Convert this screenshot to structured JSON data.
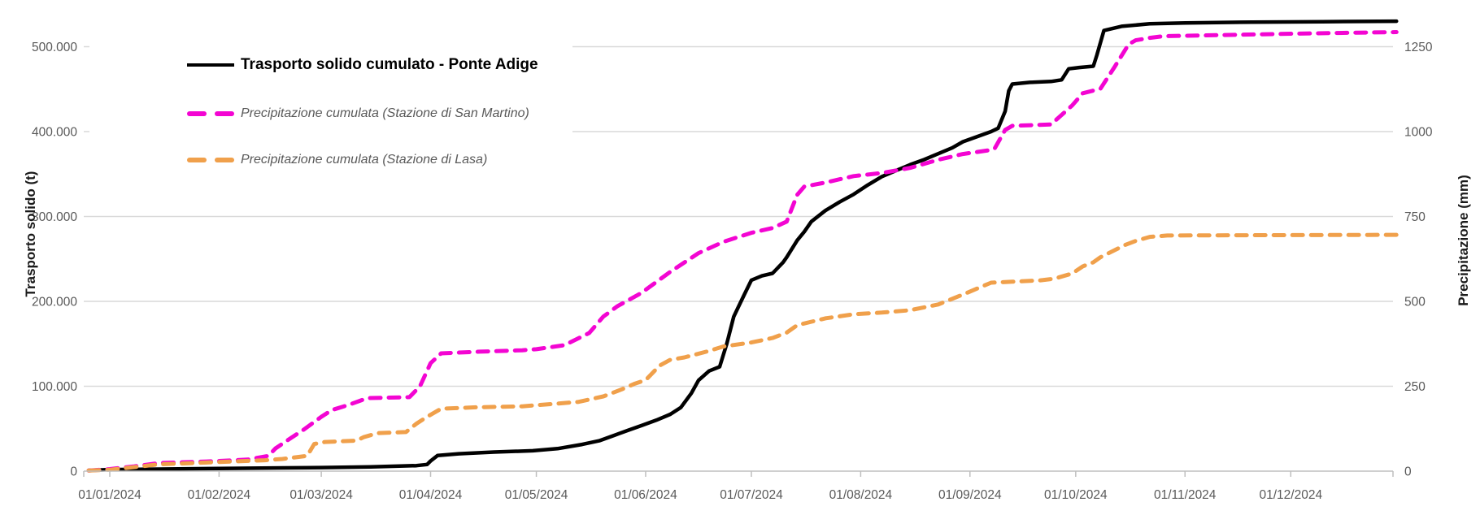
{
  "chart_data": {
    "type": "line",
    "title": "",
    "x_axis": {
      "tick_labels": [
        "01/01/2024",
        "01/02/2024",
        "01/03/2024",
        "01/04/2024",
        "01/05/2024",
        "01/06/2024",
        "01/07/2024",
        "01/08/2024",
        "01/09/2024",
        "01/10/2024",
        "01/11/2024",
        "01/12/2024"
      ],
      "tick_days": [
        1,
        32,
        61,
        92,
        122,
        153,
        183,
        214,
        245,
        275,
        306,
        336
      ],
      "range_days": [
        -6.4,
        366
      ]
    },
    "y_left": {
      "label": "Trasporto solido (t)",
      "tick_labels": [
        "0",
        "100.000",
        "200.000",
        "300.000",
        "400.000",
        "500.000"
      ],
      "tick_values": [
        0,
        100000,
        200000,
        300000,
        400000,
        500000
      ],
      "max": 500000
    },
    "y_right": {
      "label": "Precipitazione (mm)",
      "tick_labels": [
        "0",
        "250",
        "500",
        "750",
        "1000",
        "1250"
      ],
      "tick_values": [
        0,
        250,
        500,
        750,
        1000,
        1250
      ],
      "max": 1250
    },
    "grid": true,
    "legend_position": "top-left-inside",
    "colors": {
      "grid": "#D9D9D9",
      "axis_line": "#BFBFBF",
      "tick_text": "#595959",
      "black": "#000000",
      "magenta": "#F305D2",
      "orange": "#F0A04B"
    },
    "series": [
      {
        "name": "Trasporto solido cumulato - Ponte Adige",
        "axis": "left",
        "color": "#000000",
        "style": "solid",
        "width": 4.5,
        "points": [
          [
            -5,
            1000
          ],
          [
            1,
            1800
          ],
          [
            15,
            2400
          ],
          [
            32,
            3200
          ],
          [
            50,
            3800
          ],
          [
            61,
            4200
          ],
          [
            75,
            5000
          ],
          [
            88,
            6500
          ],
          [
            91,
            7800
          ],
          [
            92,
            12000
          ],
          [
            94,
            18500
          ],
          [
            100,
            20500
          ],
          [
            110,
            22500
          ],
          [
            121,
            24000
          ],
          [
            128,
            26500
          ],
          [
            135,
            31500
          ],
          [
            140,
            36000
          ],
          [
            144,
            42000
          ],
          [
            148,
            48000
          ],
          [
            152,
            54000
          ],
          [
            156,
            60000
          ],
          [
            160,
            67000
          ],
          [
            163,
            75000
          ],
          [
            166,
            92000
          ],
          [
            168,
            107000
          ],
          [
            171,
            118000
          ],
          [
            174,
            123000
          ],
          [
            176,
            150000
          ],
          [
            178,
            182000
          ],
          [
            181,
            208000
          ],
          [
            183,
            225000
          ],
          [
            186,
            230000
          ],
          [
            189,
            233000
          ],
          [
            192,
            246000
          ],
          [
            193,
            252000
          ],
          [
            196,
            272000
          ],
          [
            198,
            282000
          ],
          [
            200,
            294000
          ],
          [
            204,
            307000
          ],
          [
            208,
            317000
          ],
          [
            212,
            326000
          ],
          [
            216,
            337000
          ],
          [
            220,
            347000
          ],
          [
            224,
            354000
          ],
          [
            228,
            361000
          ],
          [
            232,
            367000
          ],
          [
            236,
            374000
          ],
          [
            240,
            381000
          ],
          [
            243,
            388000
          ],
          [
            247,
            394000
          ],
          [
            251,
            400000
          ],
          [
            253,
            404000
          ],
          [
            255,
            424000
          ],
          [
            256,
            448000
          ],
          [
            257,
            456000
          ],
          [
            262,
            458000
          ],
          [
            268,
            459000
          ],
          [
            271,
            461000
          ],
          [
            273,
            474000
          ],
          [
            276,
            475500
          ],
          [
            280,
            477000
          ],
          [
            281,
            490000
          ],
          [
            283,
            519000
          ],
          [
            288,
            524000
          ],
          [
            296,
            527000
          ],
          [
            306,
            528000
          ],
          [
            325,
            529000
          ],
          [
            345,
            529500
          ],
          [
            366,
            530000
          ]
        ]
      },
      {
        "name": "Precipitazione cumulata (Stazione di San Martino)",
        "axis": "right",
        "color": "#F305D2",
        "style": "dashed",
        "width": 5,
        "points": [
          [
            -5,
            2
          ],
          [
            1,
            6
          ],
          [
            8,
            14
          ],
          [
            15,
            24
          ],
          [
            25,
            27
          ],
          [
            32,
            30
          ],
          [
            40,
            34
          ],
          [
            46,
            45
          ],
          [
            48,
            67
          ],
          [
            52,
            95
          ],
          [
            56,
            122
          ],
          [
            61,
            160
          ],
          [
            64,
            180
          ],
          [
            69,
            196
          ],
          [
            74,
            215
          ],
          [
            86,
            218
          ],
          [
            89,
            250
          ],
          [
            92,
            318
          ],
          [
            95,
            347
          ],
          [
            106,
            352
          ],
          [
            118,
            356
          ],
          [
            122,
            359
          ],
          [
            130,
            371
          ],
          [
            137,
            407
          ],
          [
            141,
            455
          ],
          [
            145,
            486
          ],
          [
            151,
            520
          ],
          [
            153,
            534
          ],
          [
            160,
            587
          ],
          [
            168,
            642
          ],
          [
            175,
            675
          ],
          [
            183,
            702
          ],
          [
            189,
            716
          ],
          [
            193,
            735
          ],
          [
            196,
            814
          ],
          [
            198,
            838
          ],
          [
            204,
            850
          ],
          [
            212,
            869
          ],
          [
            220,
            878
          ],
          [
            228,
            893
          ],
          [
            236,
            917
          ],
          [
            243,
            934
          ],
          [
            251,
            946
          ],
          [
            252,
            950
          ],
          [
            255,
            1005
          ],
          [
            257,
            1017
          ],
          [
            268,
            1021
          ],
          [
            274,
            1077
          ],
          [
            277,
            1113
          ],
          [
            282,
            1126
          ],
          [
            286,
            1190
          ],
          [
            290,
            1257
          ],
          [
            292,
            1269
          ],
          [
            296,
            1276
          ],
          [
            300,
            1281
          ],
          [
            320,
            1285
          ],
          [
            340,
            1289
          ],
          [
            366,
            1293
          ]
        ]
      },
      {
        "name": "Precipitazione cumulata (Stazione di Lasa)",
        "axis": "right",
        "color": "#F0A04B",
        "style": "dashed",
        "width": 5,
        "points": [
          [
            -5,
            2
          ],
          [
            1,
            4
          ],
          [
            8,
            12
          ],
          [
            15,
            20
          ],
          [
            25,
            24
          ],
          [
            32,
            27
          ],
          [
            45,
            32
          ],
          [
            50,
            36
          ],
          [
            57,
            45
          ],
          [
            59,
            80
          ],
          [
            62,
            86
          ],
          [
            71,
            90
          ],
          [
            73,
            100
          ],
          [
            77,
            112
          ],
          [
            85,
            115
          ],
          [
            88,
            140
          ],
          [
            91,
            160
          ],
          [
            95,
            184
          ],
          [
            105,
            188
          ],
          [
            118,
            191
          ],
          [
            127,
            198
          ],
          [
            134,
            204
          ],
          [
            141,
            220
          ],
          [
            146,
            240
          ],
          [
            150,
            258
          ],
          [
            153,
            268
          ],
          [
            157,
            311
          ],
          [
            160,
            328
          ],
          [
            164,
            335
          ],
          [
            171,
            354
          ],
          [
            175,
            367
          ],
          [
            183,
            379
          ],
          [
            189,
            392
          ],
          [
            193,
            408
          ],
          [
            196,
            430
          ],
          [
            204,
            450
          ],
          [
            212,
            462
          ],
          [
            220,
            467
          ],
          [
            228,
            474
          ],
          [
            236,
            491
          ],
          [
            243,
            520
          ],
          [
            251,
            555
          ],
          [
            257,
            558
          ],
          [
            265,
            562
          ],
          [
            269,
            567
          ],
          [
            274,
            582
          ],
          [
            277,
            603
          ],
          [
            280,
            615
          ],
          [
            282,
            630
          ],
          [
            289,
            666
          ],
          [
            292,
            678
          ],
          [
            296,
            690
          ],
          [
            301,
            694
          ],
          [
            330,
            695
          ],
          [
            366,
            696
          ]
        ]
      }
    ]
  },
  "legend": {
    "rows": [
      {
        "label": "Trasporto solido cumulato - Ponte Adige"
      },
      {
        "label": "Precipitazione cumulata (Stazione di San Martino)"
      },
      {
        "label": "Precipitazione cumulata (Stazione di Lasa)"
      }
    ]
  }
}
